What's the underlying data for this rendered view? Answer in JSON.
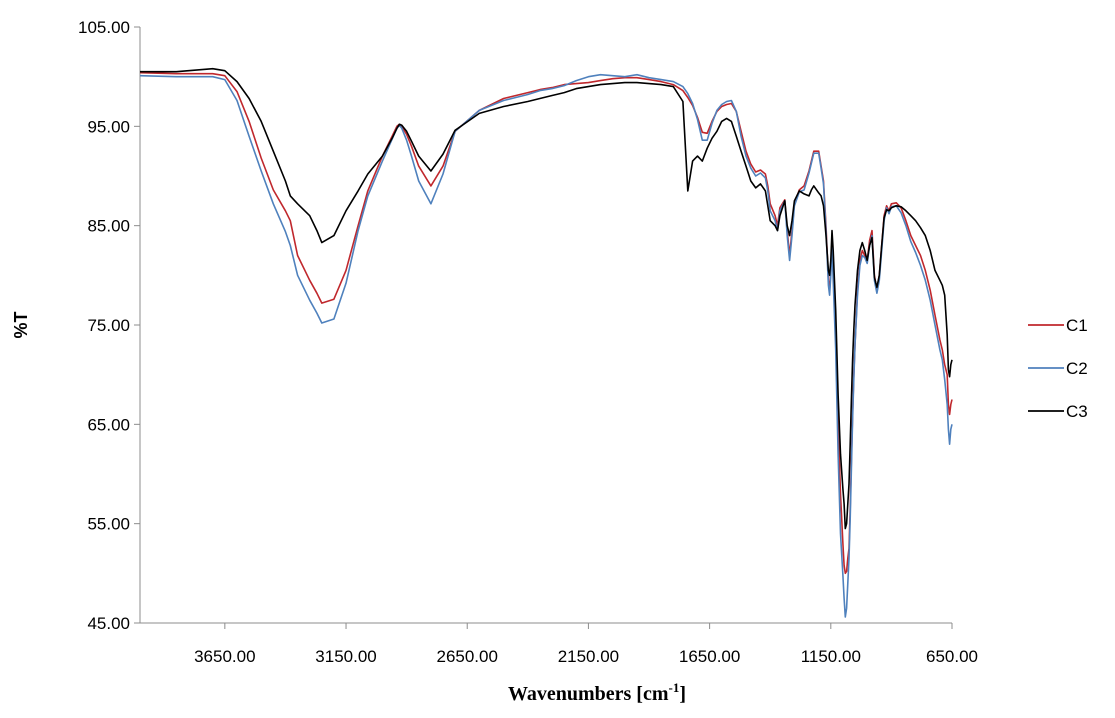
{
  "chart_data": {
    "type": "line",
    "title": "",
    "xlabel": "Wavenumbers [cm",
    "xlabel_sup": "-1",
    "xlabel_suffix": "]",
    "ylabel": "%T",
    "xlim": [
      4000,
      650
    ],
    "ylim": [
      45,
      105
    ],
    "x_reversed": true,
    "grid": false,
    "legend_position": "right",
    "x_ticks": [
      3650,
      3150,
      2650,
      2150,
      1650,
      1150,
      650
    ],
    "x_tick_labels": [
      "3650.00",
      "3150.00",
      "2650.00",
      "2150.00",
      "1650.00",
      "1150.00",
      "650.00"
    ],
    "y_ticks": [
      45,
      55,
      65,
      75,
      85,
      95,
      105
    ],
    "y_tick_labels": [
      "45.00",
      "55.00",
      "65.00",
      "75.00",
      "85.00",
      "95.00",
      "105.00"
    ],
    "series": [
      {
        "name": "C1",
        "color": "#c0282d",
        "x": [
          4000,
          3850,
          3700,
          3650,
          3600,
          3550,
          3500,
          3450,
          3400,
          3380,
          3350,
          3300,
          3270,
          3250,
          3200,
          3150,
          3100,
          3060,
          3000,
          2960,
          2940,
          2930,
          2920,
          2900,
          2880,
          2850,
          2800,
          2750,
          2700,
          2600,
          2500,
          2400,
          2350,
          2300,
          2250,
          2200,
          2150,
          2100,
          2050,
          2000,
          1950,
          1900,
          1850,
          1800,
          1760,
          1740,
          1720,
          1700,
          1680,
          1660,
          1640,
          1620,
          1600,
          1580,
          1560,
          1540,
          1520,
          1500,
          1480,
          1460,
          1440,
          1420,
          1410,
          1400,
          1380,
          1370,
          1360,
          1340,
          1330,
          1320,
          1310,
          1300,
          1280,
          1260,
          1240,
          1230,
          1220,
          1200,
          1190,
          1180,
          1170,
          1160,
          1155,
          1150,
          1145,
          1140,
          1130,
          1120,
          1110,
          1100,
          1095,
          1090,
          1085,
          1080,
          1075,
          1070,
          1065,
          1060,
          1055,
          1050,
          1040,
          1030,
          1020,
          1010,
          1000,
          990,
          980,
          970,
          960,
          950,
          940,
          930,
          920,
          910,
          900,
          880,
          860,
          840,
          820,
          800,
          780,
          760,
          740,
          720,
          700,
          690,
          680,
          670,
          665,
          660,
          655,
          650
        ],
        "y": [
          100.4,
          100.3,
          100.3,
          100.1,
          98.5,
          95.5,
          91.8,
          88.6,
          86.5,
          85.5,
          82.0,
          79.5,
          78.2,
          77.2,
          77.6,
          80.5,
          85.0,
          88.5,
          92.0,
          94.0,
          95.0,
          95.2,
          95.0,
          94.2,
          93.0,
          91.0,
          89.0,
          91.0,
          94.5,
          96.6,
          97.8,
          98.4,
          98.7,
          98.9,
          99.2,
          99.3,
          99.4,
          99.6,
          99.8,
          99.9,
          99.9,
          99.7,
          99.5,
          99.2,
          98.6,
          97.9,
          97.1,
          95.9,
          94.4,
          94.3,
          95.5,
          96.5,
          97.0,
          97.2,
          97.3,
          96.5,
          94.5,
          92.5,
          91.2,
          90.4,
          90.6,
          90.2,
          89.0,
          87.2,
          86.0,
          85.0,
          86.8,
          87.6,
          84.5,
          82.0,
          84.5,
          87.2,
          88.6,
          89.0,
          90.5,
          91.5,
          92.5,
          92.5,
          91.0,
          89.5,
          85.0,
          79.5,
          78.5,
          80.5,
          83.5,
          80.5,
          74.0,
          65.0,
          58.0,
          53.0,
          50.8,
          50.0,
          50.2,
          51.5,
          52.5,
          56.5,
          61.5,
          66.0,
          70.0,
          73.0,
          78.5,
          81.5,
          82.5,
          82.0,
          81.5,
          83.5,
          84.5,
          80.0,
          78.5,
          80.0,
          83.0,
          86.0,
          87.0,
          86.5,
          87.2,
          87.3,
          86.8,
          85.5,
          84.0,
          83.0,
          82.0,
          80.5,
          78.5,
          76.0,
          73.5,
          72.5,
          71.0,
          70.0,
          67.0,
          66.0,
          67.0,
          67.5
        ]
      },
      {
        "name": "C2",
        "color": "#4f81bd",
        "x": [
          4000,
          3850,
          3700,
          3650,
          3600,
          3550,
          3500,
          3450,
          3400,
          3380,
          3350,
          3300,
          3270,
          3250,
          3200,
          3150,
          3100,
          3060,
          3000,
          2960,
          2940,
          2930,
          2920,
          2900,
          2880,
          2850,
          2800,
          2750,
          2700,
          2600,
          2500,
          2400,
          2350,
          2300,
          2250,
          2200,
          2150,
          2100,
          2050,
          2000,
          1950,
          1900,
          1850,
          1800,
          1760,
          1740,
          1720,
          1700,
          1680,
          1660,
          1640,
          1620,
          1600,
          1580,
          1560,
          1540,
          1520,
          1500,
          1480,
          1460,
          1440,
          1420,
          1410,
          1400,
          1380,
          1370,
          1360,
          1340,
          1330,
          1320,
          1310,
          1300,
          1280,
          1260,
          1240,
          1230,
          1220,
          1200,
          1190,
          1180,
          1170,
          1160,
          1155,
          1150,
          1145,
          1140,
          1130,
          1120,
          1110,
          1100,
          1095,
          1090,
          1085,
          1080,
          1075,
          1070,
          1065,
          1060,
          1055,
          1050,
          1040,
          1030,
          1020,
          1010,
          1000,
          990,
          980,
          970,
          960,
          950,
          940,
          930,
          920,
          910,
          900,
          880,
          860,
          840,
          820,
          800,
          780,
          760,
          740,
          720,
          700,
          690,
          680,
          670,
          665,
          660,
          655,
          650
        ],
        "y": [
          100.1,
          100.0,
          100.0,
          99.7,
          97.6,
          94.0,
          90.5,
          87.2,
          84.4,
          83.0,
          80.0,
          77.5,
          76.2,
          75.2,
          75.6,
          79.2,
          84.5,
          88.0,
          91.5,
          93.7,
          94.8,
          95.1,
          94.8,
          93.6,
          92.0,
          89.5,
          87.2,
          90.2,
          94.5,
          96.6,
          97.6,
          98.2,
          98.6,
          98.8,
          99.1,
          99.6,
          100.0,
          100.2,
          100.1,
          100.0,
          100.2,
          99.9,
          99.7,
          99.5,
          99.0,
          98.3,
          97.3,
          95.7,
          93.6,
          93.6,
          95.3,
          96.6,
          97.2,
          97.5,
          97.6,
          96.5,
          94.0,
          92.0,
          90.8,
          90.0,
          90.3,
          89.8,
          88.5,
          86.5,
          85.5,
          84.5,
          86.5,
          87.5,
          84.0,
          81.5,
          84.0,
          87.0,
          88.4,
          88.6,
          90.3,
          91.3,
          92.3,
          92.3,
          90.8,
          89.2,
          84.5,
          79.0,
          78.0,
          80.0,
          83.0,
          79.5,
          72.5,
          62.0,
          54.0,
          49.8,
          47.5,
          45.6,
          46.5,
          49.0,
          51.5,
          55.5,
          60.5,
          65.5,
          69.5,
          73.0,
          78.0,
          81.0,
          82.0,
          81.8,
          81.2,
          83.0,
          84.0,
          79.5,
          78.2,
          79.5,
          82.5,
          85.5,
          86.8,
          86.2,
          86.9,
          87.0,
          86.3,
          85.0,
          83.4,
          82.3,
          81.0,
          79.5,
          77.5,
          75.0,
          72.5,
          71.5,
          69.5,
          67.0,
          64.5,
          63.0,
          64.5,
          65.0
        ]
      },
      {
        "name": "C3",
        "color": "#000000",
        "x": [
          4000,
          3850,
          3700,
          3650,
          3600,
          3550,
          3500,
          3450,
          3400,
          3380,
          3350,
          3300,
          3270,
          3250,
          3200,
          3150,
          3100,
          3060,
          3000,
          2960,
          2940,
          2930,
          2920,
          2900,
          2880,
          2850,
          2800,
          2750,
          2700,
          2600,
          2500,
          2400,
          2350,
          2300,
          2250,
          2200,
          2150,
          2100,
          2050,
          2000,
          1950,
          1900,
          1850,
          1800,
          1760,
          1740,
          1720,
          1700,
          1680,
          1660,
          1640,
          1620,
          1600,
          1580,
          1560,
          1540,
          1520,
          1500,
          1480,
          1460,
          1440,
          1420,
          1410,
          1400,
          1380,
          1370,
          1360,
          1340,
          1330,
          1320,
          1310,
          1300,
          1280,
          1260,
          1240,
          1230,
          1220,
          1200,
          1190,
          1180,
          1170,
          1160,
          1155,
          1150,
          1145,
          1140,
          1130,
          1120,
          1110,
          1100,
          1095,
          1090,
          1085,
          1080,
          1075,
          1070,
          1065,
          1060,
          1055,
          1050,
          1040,
          1030,
          1020,
          1010,
          1000,
          990,
          980,
          970,
          960,
          950,
          940,
          930,
          920,
          910,
          900,
          880,
          860,
          840,
          820,
          800,
          780,
          760,
          740,
          720,
          700,
          690,
          680,
          670,
          665,
          660,
          655,
          650
        ],
        "y": [
          100.5,
          100.5,
          100.8,
          100.6,
          99.5,
          97.8,
          95.5,
          92.5,
          89.5,
          88.0,
          87.2,
          86.0,
          84.5,
          83.3,
          84.0,
          86.5,
          88.5,
          90.2,
          92.0,
          93.8,
          94.8,
          95.2,
          95.1,
          94.5,
          93.5,
          92.0,
          90.5,
          92.2,
          94.6,
          96.3,
          97.0,
          97.5,
          97.8,
          98.1,
          98.4,
          98.8,
          99.0,
          99.2,
          99.3,
          99.4,
          99.4,
          99.3,
          99.2,
          99.0,
          97.5,
          88.5,
          91.5,
          92.0,
          91.5,
          92.8,
          93.8,
          94.5,
          95.5,
          95.8,
          95.5,
          94.0,
          92.5,
          91.0,
          89.5,
          88.8,
          89.2,
          88.5,
          87.0,
          85.5,
          85.0,
          84.5,
          86.0,
          87.5,
          85.0,
          84.0,
          85.5,
          87.5,
          88.5,
          88.2,
          88.0,
          88.6,
          89.0,
          88.3,
          88.0,
          87.0,
          84.0,
          80.5,
          80.0,
          81.5,
          84.5,
          82.5,
          76.5,
          68.0,
          62.0,
          58.5,
          57.0,
          54.5,
          55.0,
          57.0,
          59.0,
          63.0,
          67.5,
          71.5,
          74.5,
          77.0,
          80.5,
          82.5,
          83.3,
          82.5,
          81.5,
          83.0,
          83.8,
          79.8,
          78.8,
          80.0,
          83.0,
          85.8,
          86.6,
          86.5,
          86.8,
          87.0,
          86.9,
          86.5,
          86.0,
          85.5,
          84.8,
          84.0,
          82.5,
          80.5,
          79.5,
          79.0,
          78.0,
          74.0,
          70.5,
          69.8,
          71.0,
          71.5
        ]
      }
    ]
  }
}
